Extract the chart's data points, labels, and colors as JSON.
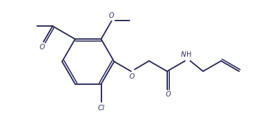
{
  "bg_color": "#ffffff",
  "line_color": "#2b2b5a",
  "line_width": 1.4,
  "figsize": [
    3.91,
    1.71
  ],
  "dpi": 100,
  "xlim": [
    -2.5,
    5.5
  ],
  "ylim": [
    -1.8,
    2.0
  ]
}
